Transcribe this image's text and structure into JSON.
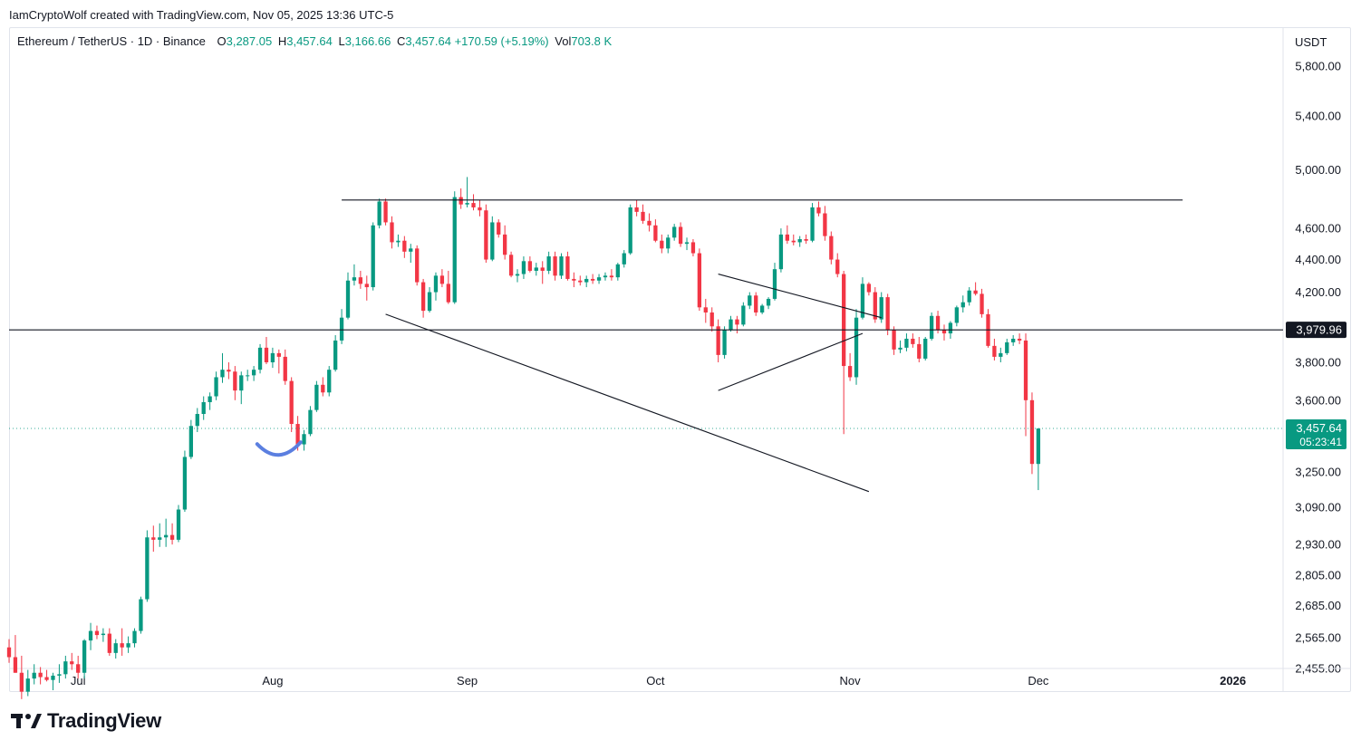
{
  "header": {
    "attribution": "IamCryptoWolf created with TradingView.com, Nov 05, 2025 13:36 UTC-5"
  },
  "legend": {
    "symbol": "Ethereum / TetherUS · 1D · Binance",
    "open_label": "O",
    "open": "3,287.05",
    "high_label": "H",
    "high": "3,457.64",
    "low_label": "L",
    "low": "3,166.66",
    "close_label": "C",
    "close": "3,457.64",
    "change": "+170.59 (+5.19%)",
    "vol_label": "Vol",
    "vol": "703.8 K"
  },
  "price_axis": {
    "currency": "USDT",
    "horizontal_line_label": "3,979.96",
    "last_price_label": "3,457.64",
    "countdown": "05:23:41"
  },
  "brand": {
    "name": "TradingView"
  },
  "colors": {
    "up": "#089981",
    "down": "#f23645",
    "line": "#131722",
    "highlight": "#5b7fe0",
    "grid_text": "#131722",
    "axis_border": "#e0e3eb"
  },
  "chart_data": {
    "type": "candlestick",
    "scale": "log",
    "x_range": [
      "2025-06-20",
      "2026-01-09"
    ],
    "ylim": [
      2455,
      6130
    ],
    "y_ticks": [
      5800,
      5400,
      5000,
      4600,
      4400,
      4200,
      3800,
      3600,
      3250,
      3090,
      2930,
      2805,
      2685,
      2565,
      2455
    ],
    "y_tick_labels": [
      "5,800.00",
      "5,400.00",
      "5,000.00",
      "4,600.00",
      "4,400.00",
      "4,200.00",
      "3,800.00",
      "3,600.00",
      "3,250.00",
      "3,090.00",
      "2,930.00",
      "2,805.00",
      "2,685.00",
      "2,565.00",
      "2,455.00"
    ],
    "x_ticks": [
      {
        "date": "2025-07-01",
        "label": "Jul"
      },
      {
        "date": "2025-08-01",
        "label": "Aug"
      },
      {
        "date": "2025-09-01",
        "label": "Sep"
      },
      {
        "date": "2025-10-01",
        "label": "Oct"
      },
      {
        "date": "2025-11-01",
        "label": "Nov"
      },
      {
        "date": "2025-12-01",
        "label": "Dec"
      },
      {
        "date": "2026-01-01",
        "label": "2026"
      }
    ],
    "horizontal_line": 3979.96,
    "last_price": 3457.64,
    "trendlines": [
      {
        "from": [
          "2025-08-12",
          4790
        ],
        "to": [
          "2025-12-24",
          4790
        ]
      },
      {
        "from": [
          "2025-08-19",
          4070
        ],
        "to": [
          "2025-11-04",
          3160
        ]
      },
      {
        "from": [
          "2025-10-11",
          4310
        ],
        "to": [
          "2025-11-06",
          4050
        ]
      },
      {
        "from": [
          "2025-10-11",
          3650
        ],
        "to": [
          "2025-11-03",
          3960
        ]
      }
    ],
    "bottom_marker": {
      "date": "2025-08-02",
      "price": 3360
    },
    "candles": [
      [
        "2025-06-20",
        2530,
        2560,
        2475,
        2495
      ],
      [
        "2025-06-21",
        2495,
        2575,
        2440,
        2440
      ],
      [
        "2025-06-22",
        2440,
        2500,
        2350,
        2375
      ],
      [
        "2025-06-23",
        2375,
        2450,
        2360,
        2420
      ],
      [
        "2025-06-24",
        2420,
        2470,
        2400,
        2440
      ],
      [
        "2025-06-25",
        2440,
        2460,
        2400,
        2425
      ],
      [
        "2025-06-26",
        2425,
        2450,
        2410,
        2415
      ],
      [
        "2025-06-27",
        2415,
        2440,
        2380,
        2430
      ],
      [
        "2025-06-28",
        2430,
        2470,
        2405,
        2435
      ],
      [
        "2025-06-29",
        2435,
        2500,
        2420,
        2480
      ],
      [
        "2025-06-30",
        2480,
        2510,
        2450,
        2470
      ],
      [
        "2025-07-01",
        2470,
        2500,
        2420,
        2440
      ],
      [
        "2025-07-02",
        2440,
        2560,
        2420,
        2555
      ],
      [
        "2025-07-03",
        2555,
        2620,
        2520,
        2590
      ],
      [
        "2025-07-04",
        2590,
        2610,
        2560,
        2575
      ],
      [
        "2025-07-05",
        2575,
        2600,
        2550,
        2580
      ],
      [
        "2025-07-06",
        2580,
        2600,
        2500,
        2510
      ],
      [
        "2025-07-07",
        2510,
        2560,
        2490,
        2545
      ],
      [
        "2025-07-08",
        2545,
        2600,
        2500,
        2530
      ],
      [
        "2025-07-09",
        2530,
        2570,
        2510,
        2545
      ],
      [
        "2025-07-10",
        2545,
        2600,
        2530,
        2590
      ],
      [
        "2025-07-11",
        2590,
        2720,
        2580,
        2710
      ],
      [
        "2025-07-12",
        2710,
        2990,
        2700,
        2960
      ],
      [
        "2025-07-13",
        2960,
        3010,
        2900,
        2950
      ],
      [
        "2025-07-14",
        2950,
        3020,
        2920,
        2960
      ],
      [
        "2025-07-15",
        2960,
        3040,
        2920,
        2970
      ],
      [
        "2025-07-16",
        2970,
        3020,
        2930,
        2950
      ],
      [
        "2025-07-17",
        2950,
        3100,
        2940,
        3080
      ],
      [
        "2025-07-18",
        3080,
        3350,
        3070,
        3320
      ],
      [
        "2025-07-19",
        3320,
        3500,
        3310,
        3470
      ],
      [
        "2025-07-20",
        3470,
        3560,
        3440,
        3530
      ],
      [
        "2025-07-21",
        3530,
        3620,
        3500,
        3590
      ],
      [
        "2025-07-22",
        3590,
        3640,
        3550,
        3620
      ],
      [
        "2025-07-23",
        3620,
        3750,
        3600,
        3720
      ],
      [
        "2025-07-24",
        3720,
        3850,
        3690,
        3760
      ],
      [
        "2025-07-25",
        3760,
        3800,
        3710,
        3750
      ],
      [
        "2025-07-26",
        3750,
        3780,
        3600,
        3650
      ],
      [
        "2025-07-27",
        3650,
        3750,
        3580,
        3730
      ],
      [
        "2025-07-28",
        3730,
        3760,
        3700,
        3730
      ],
      [
        "2025-07-29",
        3730,
        3780,
        3700,
        3760
      ],
      [
        "2025-07-30",
        3760,
        3900,
        3740,
        3880
      ],
      [
        "2025-07-31",
        3880,
        3940,
        3790,
        3800
      ],
      [
        "2025-08-01",
        3800,
        3880,
        3770,
        3850
      ],
      [
        "2025-08-02",
        3850,
        3870,
        3740,
        3830
      ],
      [
        "2025-08-03",
        3830,
        3870,
        3680,
        3700
      ],
      [
        "2025-08-04",
        3700,
        3720,
        3440,
        3480
      ],
      [
        "2025-08-05",
        3480,
        3520,
        3350,
        3380
      ],
      [
        "2025-08-06",
        3380,
        3450,
        3350,
        3430
      ],
      [
        "2025-08-07",
        3430,
        3570,
        3420,
        3550
      ],
      [
        "2025-08-08",
        3550,
        3700,
        3540,
        3680
      ],
      [
        "2025-08-09",
        3680,
        3720,
        3620,
        3640
      ],
      [
        "2025-08-10",
        3640,
        3780,
        3620,
        3760
      ],
      [
        "2025-08-11",
        3760,
        3950,
        3750,
        3920
      ],
      [
        "2025-08-12",
        3920,
        4100,
        3900,
        4050
      ],
      [
        "2025-08-13",
        4050,
        4320,
        4040,
        4270
      ],
      [
        "2025-08-14",
        4270,
        4370,
        4240,
        4290
      ],
      [
        "2025-08-15",
        4290,
        4330,
        4220,
        4250
      ],
      [
        "2025-08-16",
        4250,
        4300,
        4150,
        4230
      ],
      [
        "2025-08-17",
        4230,
        4640,
        4210,
        4620
      ],
      [
        "2025-08-18",
        4620,
        4800,
        4600,
        4780
      ],
      [
        "2025-08-19",
        4780,
        4800,
        4620,
        4640
      ],
      [
        "2025-08-20",
        4640,
        4680,
        4470,
        4510
      ],
      [
        "2025-08-21",
        4510,
        4560,
        4480,
        4520
      ],
      [
        "2025-08-22",
        4520,
        4550,
        4410,
        4450
      ],
      [
        "2025-08-23",
        4450,
        4500,
        4380,
        4470
      ],
      [
        "2025-08-24",
        4470,
        4490,
        4240,
        4260
      ],
      [
        "2025-08-25",
        4260,
        4280,
        4050,
        4090
      ],
      [
        "2025-08-26",
        4090,
        4230,
        4080,
        4200
      ],
      [
        "2025-08-27",
        4200,
        4320,
        4150,
        4300
      ],
      [
        "2025-08-28",
        4300,
        4340,
        4230,
        4250
      ],
      [
        "2025-08-29",
        4250,
        4330,
        4130,
        4140
      ],
      [
        "2025-08-30",
        4140,
        4850,
        4130,
        4810
      ],
      [
        "2025-08-31",
        4810,
        4870,
        4730,
        4760
      ],
      [
        "2025-09-01",
        4760,
        4950,
        4740,
        4770
      ],
      [
        "2025-09-02",
        4770,
        4830,
        4720,
        4740
      ],
      [
        "2025-09-03",
        4740,
        4790,
        4680,
        4720
      ],
      [
        "2025-09-04",
        4720,
        4760,
        4380,
        4400
      ],
      [
        "2025-09-05",
        4400,
        4680,
        4390,
        4640
      ],
      [
        "2025-09-06",
        4640,
        4660,
        4540,
        4560
      ],
      [
        "2025-09-07",
        4560,
        4620,
        4400,
        4430
      ],
      [
        "2025-09-08",
        4430,
        4450,
        4290,
        4300
      ],
      [
        "2025-09-09",
        4300,
        4340,
        4260,
        4310
      ],
      [
        "2025-09-10",
        4310,
        4420,
        4280,
        4390
      ],
      [
        "2025-09-11",
        4390,
        4420,
        4320,
        4330
      ],
      [
        "2025-09-12",
        4330,
        4380,
        4300,
        4350
      ],
      [
        "2025-09-13",
        4350,
        4390,
        4250,
        4330
      ],
      [
        "2025-09-14",
        4330,
        4450,
        4310,
        4420
      ],
      [
        "2025-09-15",
        4420,
        4450,
        4270,
        4300
      ],
      [
        "2025-09-16",
        4300,
        4440,
        4280,
        4420
      ],
      [
        "2025-09-17",
        4420,
        4450,
        4270,
        4280
      ],
      [
        "2025-09-18",
        4280,
        4320,
        4230,
        4270
      ],
      [
        "2025-09-19",
        4270,
        4300,
        4240,
        4260
      ],
      [
        "2025-09-20",
        4260,
        4300,
        4230,
        4280
      ],
      [
        "2025-09-21",
        4280,
        4310,
        4250,
        4270
      ],
      [
        "2025-09-22",
        4270,
        4310,
        4250,
        4290
      ],
      [
        "2025-09-23",
        4290,
        4320,
        4270,
        4300
      ],
      [
        "2025-09-24",
        4300,
        4340,
        4270,
        4290
      ],
      [
        "2025-09-25",
        4290,
        4380,
        4270,
        4370
      ],
      [
        "2025-09-26",
        4370,
        4460,
        4350,
        4440
      ],
      [
        "2025-09-27",
        4440,
        4760,
        4430,
        4740
      ],
      [
        "2025-09-28",
        4740,
        4790,
        4680,
        4710
      ],
      [
        "2025-09-29",
        4710,
        4760,
        4630,
        4650
      ],
      [
        "2025-09-30",
        4650,
        4700,
        4580,
        4620
      ],
      [
        "2025-10-01",
        4620,
        4660,
        4510,
        4520
      ],
      [
        "2025-10-02",
        4520,
        4560,
        4440,
        4470
      ],
      [
        "2025-10-03",
        4470,
        4560,
        4440,
        4540
      ],
      [
        "2025-10-04",
        4540,
        4630,
        4520,
        4610
      ],
      [
        "2025-10-05",
        4610,
        4640,
        4480,
        4500
      ],
      [
        "2025-10-06",
        4500,
        4540,
        4460,
        4510
      ],
      [
        "2025-10-07",
        4510,
        4530,
        4420,
        4440
      ],
      [
        "2025-10-08",
        4440,
        4470,
        4090,
        4110
      ],
      [
        "2025-10-09",
        4110,
        4160,
        4020,
        4080
      ],
      [
        "2025-10-10",
        4080,
        4110,
        3970,
        4000
      ],
      [
        "2025-10-11",
        4000,
        4040,
        3800,
        3840
      ],
      [
        "2025-10-12",
        3840,
        4000,
        3820,
        3980
      ],
      [
        "2025-10-13",
        3980,
        4060,
        3970,
        4040
      ],
      [
        "2025-10-14",
        4040,
        4060,
        3960,
        4010
      ],
      [
        "2025-10-15",
        4010,
        4140,
        4000,
        4120
      ],
      [
        "2025-10-16",
        4120,
        4200,
        4100,
        4180
      ],
      [
        "2025-10-17",
        4180,
        4200,
        4060,
        4080
      ],
      [
        "2025-10-18",
        4080,
        4130,
        4070,
        4120
      ],
      [
        "2025-10-19",
        4120,
        4170,
        4100,
        4160
      ],
      [
        "2025-10-20",
        4160,
        4380,
        4150,
        4340
      ],
      [
        "2025-10-21",
        4340,
        4600,
        4320,
        4560
      ],
      [
        "2025-10-22",
        4560,
        4620,
        4500,
        4520
      ],
      [
        "2025-10-23",
        4520,
        4560,
        4490,
        4510
      ],
      [
        "2025-10-24",
        4510,
        4550,
        4480,
        4530
      ],
      [
        "2025-10-25",
        4530,
        4560,
        4500,
        4520
      ],
      [
        "2025-10-26",
        4520,
        4770,
        4510,
        4740
      ],
      [
        "2025-10-27",
        4740,
        4780,
        4680,
        4700
      ],
      [
        "2025-10-28",
        4700,
        4750,
        4520,
        4550
      ],
      [
        "2025-10-29",
        4550,
        4580,
        4370,
        4400
      ],
      [
        "2025-10-30",
        4400,
        4440,
        4290,
        4310
      ],
      [
        "2025-10-31",
        4310,
        4330,
        3430,
        3780
      ],
      [
        "2025-11-01",
        3780,
        3850,
        3700,
        3720
      ],
      [
        "2025-11-02",
        3720,
        4100,
        3680,
        4050
      ],
      [
        "2025-11-03",
        4050,
        4290,
        4040,
        4250
      ],
      [
        "2025-11-04",
        4250,
        4260,
        4180,
        4200
      ],
      [
        "2025-11-05",
        4200,
        4230,
        4020,
        4040
      ],
      [
        "2025-11-06",
        4040,
        4200,
        4020,
        4170
      ],
      [
        "2025-11-07",
        4170,
        4190,
        3950,
        3980
      ],
      [
        "2025-11-08",
        3980,
        4000,
        3840,
        3870
      ],
      [
        "2025-11-09",
        3870,
        3920,
        3850,
        3880
      ],
      [
        "2025-11-10",
        3880,
        3960,
        3860,
        3930
      ],
      [
        "2025-11-11",
        3930,
        3960,
        3880,
        3900
      ],
      [
        "2025-11-12",
        3900,
        3940,
        3800,
        3820
      ],
      [
        "2025-11-13",
        3820,
        3940,
        3810,
        3930
      ],
      [
        "2025-11-14",
        3930,
        4080,
        3920,
        4060
      ],
      [
        "2025-11-15",
        4060,
        4090,
        3960,
        3980
      ],
      [
        "2025-11-16",
        3980,
        4010,
        3920,
        3960
      ],
      [
        "2025-11-17",
        3960,
        4030,
        3930,
        4020
      ],
      [
        "2025-11-18",
        4020,
        4120,
        4000,
        4110
      ],
      [
        "2025-11-19",
        4110,
        4180,
        4080,
        4140
      ],
      [
        "2025-11-20",
        4140,
        4230,
        4120,
        4210
      ],
      [
        "2025-11-21",
        4210,
        4260,
        4180,
        4190
      ],
      [
        "2025-11-22",
        4190,
        4220,
        4050,
        4070
      ],
      [
        "2025-11-23",
        4070,
        4100,
        3880,
        3890
      ],
      [
        "2025-11-24",
        3890,
        3930,
        3810,
        3830
      ],
      [
        "2025-11-25",
        3830,
        3880,
        3800,
        3850
      ],
      [
        "2025-11-26",
        3850,
        3930,
        3840,
        3910
      ],
      [
        "2025-11-27",
        3910,
        3950,
        3890,
        3930
      ],
      [
        "2025-11-28",
        3930,
        3960,
        3900,
        3920
      ],
      [
        "2025-11-29",
        3920,
        3960,
        3420,
        3600
      ],
      [
        "2025-11-30",
        3600,
        3640,
        3240,
        3287.05
      ],
      [
        "2025-12-01",
        3287.05,
        3457.64,
        3166.66,
        3457.64
      ]
    ]
  }
}
